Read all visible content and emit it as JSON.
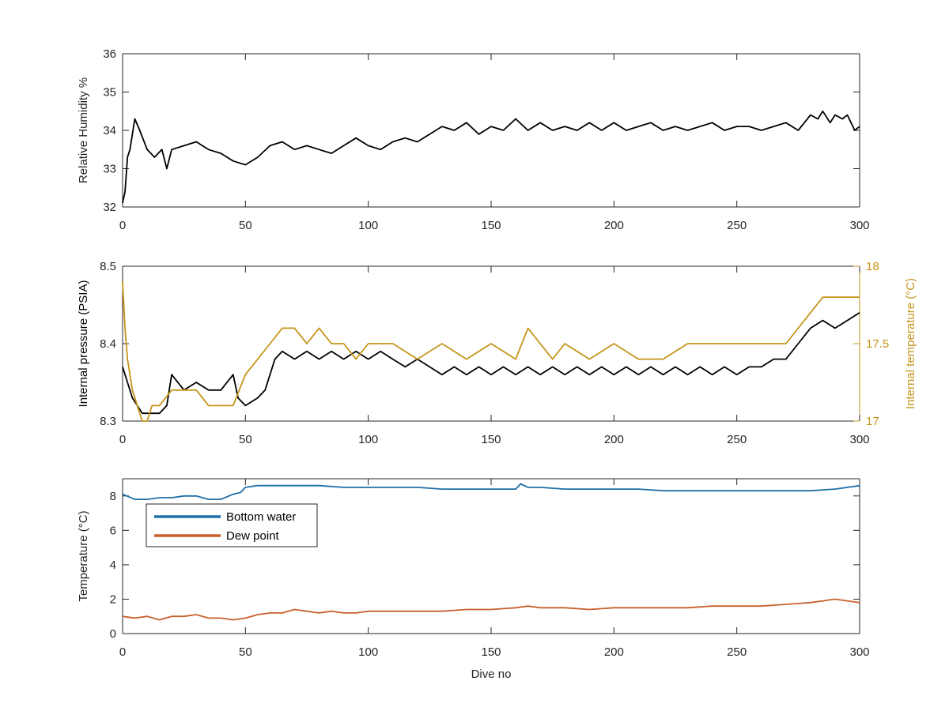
{
  "colors": {
    "black": "#000000",
    "axis": "#262626",
    "right_axis": "#c5951a",
    "bottom_water": "#1f6fa8",
    "dew_point": "#c8602c"
  },
  "chart_data": [
    {
      "type": "line",
      "ylabel": "Relative Humidity %",
      "xlim": [
        0,
        300
      ],
      "ylim": [
        32,
        36
      ],
      "xticks": [
        "0",
        "50",
        "100",
        "150",
        "200",
        "250",
        "300"
      ],
      "yticks": [
        "32",
        "33",
        "34",
        "35",
        "36"
      ],
      "series": [
        {
          "color": "#000000",
          "x": [
            0,
            1,
            2,
            3,
            5,
            7,
            10,
            13,
            16,
            18,
            20,
            25,
            30,
            35,
            40,
            45,
            50,
            55,
            60,
            65,
            70,
            75,
            80,
            85,
            90,
            95,
            100,
            105,
            110,
            115,
            120,
            125,
            130,
            135,
            140,
            145,
            150,
            155,
            160,
            165,
            170,
            175,
            180,
            185,
            190,
            195,
            200,
            205,
            210,
            215,
            220,
            225,
            230,
            235,
            240,
            245,
            250,
            255,
            260,
            265,
            270,
            275,
            280,
            283,
            285,
            288,
            290,
            293,
            295,
            298,
            300
          ],
          "y": [
            32.1,
            32.4,
            33.3,
            33.5,
            34.3,
            34.0,
            33.5,
            33.3,
            33.5,
            33.0,
            33.5,
            33.6,
            33.7,
            33.5,
            33.4,
            33.2,
            33.1,
            33.3,
            33.6,
            33.7,
            33.5,
            33.6,
            33.5,
            33.4,
            33.6,
            33.8,
            33.6,
            33.5,
            33.7,
            33.8,
            33.7,
            33.9,
            34.1,
            34.0,
            34.2,
            33.9,
            34.1,
            34.0,
            34.3,
            34.0,
            34.2,
            34.0,
            34.1,
            34.0,
            34.2,
            34.0,
            34.2,
            34.0,
            34.1,
            34.2,
            34.0,
            34.1,
            34.0,
            34.1,
            34.2,
            34.0,
            34.1,
            34.1,
            34.0,
            34.1,
            34.2,
            34.0,
            34.4,
            34.3,
            34.5,
            34.2,
            34.4,
            34.3,
            34.4,
            34.0,
            34.1
          ]
        }
      ]
    },
    {
      "type": "line",
      "ylabel": "Internal pressure (PSIA)",
      "y2label": "Internal temperature (°C)",
      "xlim": [
        0,
        300
      ],
      "ylim": [
        8.3,
        8.5
      ],
      "y2lim": [
        17,
        18
      ],
      "xticks": [
        "0",
        "50",
        "100",
        "150",
        "200",
        "250",
        "300"
      ],
      "yticks": [
        "8.3",
        "8.4",
        "8.5"
      ],
      "y2ticks": [
        "17",
        "17.5",
        "18"
      ],
      "series": [
        {
          "color": "#000000",
          "x": [
            0,
            2,
            4,
            6,
            8,
            10,
            15,
            18,
            20,
            25,
            30,
            35,
            40,
            45,
            47,
            50,
            55,
            58,
            60,
            62,
            65,
            70,
            75,
            80,
            85,
            90,
            95,
            100,
            105,
            110,
            115,
            120,
            125,
            130,
            135,
            140,
            145,
            150,
            155,
            160,
            165,
            170,
            175,
            180,
            185,
            190,
            195,
            200,
            205,
            210,
            215,
            220,
            225,
            230,
            235,
            240,
            245,
            250,
            255,
            260,
            265,
            270,
            275,
            280,
            285,
            290,
            295,
            300
          ],
          "y": [
            8.37,
            8.35,
            8.33,
            8.32,
            8.31,
            8.31,
            8.31,
            8.32,
            8.36,
            8.34,
            8.35,
            8.34,
            8.34,
            8.36,
            8.33,
            8.32,
            8.33,
            8.34,
            8.36,
            8.38,
            8.39,
            8.38,
            8.39,
            8.38,
            8.39,
            8.38,
            8.39,
            8.38,
            8.39,
            8.38,
            8.37,
            8.38,
            8.37,
            8.36,
            8.37,
            8.36,
            8.37,
            8.36,
            8.37,
            8.36,
            8.37,
            8.36,
            8.37,
            8.36,
            8.37,
            8.36,
            8.37,
            8.36,
            8.37,
            8.36,
            8.37,
            8.36,
            8.37,
            8.36,
            8.37,
            8.36,
            8.37,
            8.36,
            8.37,
            8.37,
            8.38,
            8.38,
            8.4,
            8.42,
            8.43,
            8.42,
            8.43,
            8.44
          ]
        },
        {
          "color": "#c5951a",
          "axis": "right",
          "x": [
            0,
            1,
            2,
            4,
            6,
            8,
            10,
            12,
            15,
            20,
            25,
            30,
            35,
            40,
            45,
            50,
            55,
            60,
            65,
            70,
            75,
            80,
            85,
            90,
            95,
            100,
            110,
            120,
            130,
            140,
            150,
            160,
            165,
            170,
            175,
            180,
            190,
            200,
            210,
            220,
            230,
            240,
            250,
            260,
            270,
            275,
            280,
            285,
            290,
            295,
            300
          ],
          "y": [
            17.9,
            17.6,
            17.4,
            17.2,
            17.1,
            17.0,
            17.0,
            17.1,
            17.1,
            17.2,
            17.2,
            17.2,
            17.1,
            17.1,
            17.1,
            17.3,
            17.4,
            17.5,
            17.6,
            17.6,
            17.5,
            17.6,
            17.5,
            17.5,
            17.4,
            17.5,
            17.5,
            17.4,
            17.5,
            17.4,
            17.5,
            17.4,
            17.6,
            17.5,
            17.4,
            17.5,
            17.4,
            17.5,
            17.4,
            17.4,
            17.5,
            17.5,
            17.5,
            17.5,
            17.5,
            17.6,
            17.7,
            17.8,
            17.8,
            17.8,
            17.8
          ]
        }
      ]
    },
    {
      "type": "line",
      "ylabel": "Temperature (°C)",
      "xlabel": "Dive no",
      "xlim": [
        0,
        300
      ],
      "ylim": [
        0,
        9
      ],
      "xticks": [
        "0",
        "50",
        "100",
        "150",
        "200",
        "250",
        "300"
      ],
      "yticks": [
        "0",
        "2",
        "4",
        "6",
        "8"
      ],
      "legend": {
        "placement": "top-left",
        "items": [
          "Bottom water",
          "Dew point"
        ]
      },
      "series": [
        {
          "name": "Bottom water",
          "color": "#1f6fa8",
          "x": [
            0,
            5,
            10,
            15,
            20,
            25,
            30,
            35,
            40,
            45,
            48,
            50,
            55,
            60,
            70,
            80,
            90,
            100,
            110,
            120,
            130,
            140,
            150,
            160,
            162,
            165,
            170,
            180,
            190,
            200,
            210,
            220,
            230,
            240,
            250,
            260,
            270,
            280,
            290,
            300
          ],
          "y": [
            8.1,
            7.8,
            7.8,
            7.9,
            7.9,
            8.0,
            8.0,
            7.8,
            7.8,
            8.1,
            8.2,
            8.5,
            8.6,
            8.6,
            8.6,
            8.6,
            8.5,
            8.5,
            8.5,
            8.5,
            8.4,
            8.4,
            8.4,
            8.4,
            8.7,
            8.5,
            8.5,
            8.4,
            8.4,
            8.4,
            8.4,
            8.3,
            8.3,
            8.3,
            8.3,
            8.3,
            8.3,
            8.3,
            8.4,
            8.6
          ]
        },
        {
          "name": "Dew point",
          "color": "#c8602c",
          "x": [
            0,
            5,
            10,
            15,
            20,
            25,
            30,
            35,
            40,
            45,
            50,
            55,
            60,
            65,
            70,
            75,
            80,
            85,
            90,
            95,
            100,
            110,
            120,
            130,
            140,
            150,
            160,
            165,
            170,
            180,
            190,
            200,
            210,
            220,
            230,
            240,
            250,
            260,
            270,
            280,
            285,
            290,
            295,
            300
          ],
          "y": [
            1.0,
            0.9,
            1.0,
            0.8,
            1.0,
            1.0,
            1.1,
            0.9,
            0.9,
            0.8,
            0.9,
            1.1,
            1.2,
            1.2,
            1.4,
            1.3,
            1.2,
            1.3,
            1.2,
            1.2,
            1.3,
            1.3,
            1.3,
            1.3,
            1.4,
            1.4,
            1.5,
            1.6,
            1.5,
            1.5,
            1.4,
            1.5,
            1.5,
            1.5,
            1.5,
            1.6,
            1.6,
            1.6,
            1.7,
            1.8,
            1.9,
            2.0,
            1.9,
            1.8
          ]
        }
      ]
    }
  ]
}
